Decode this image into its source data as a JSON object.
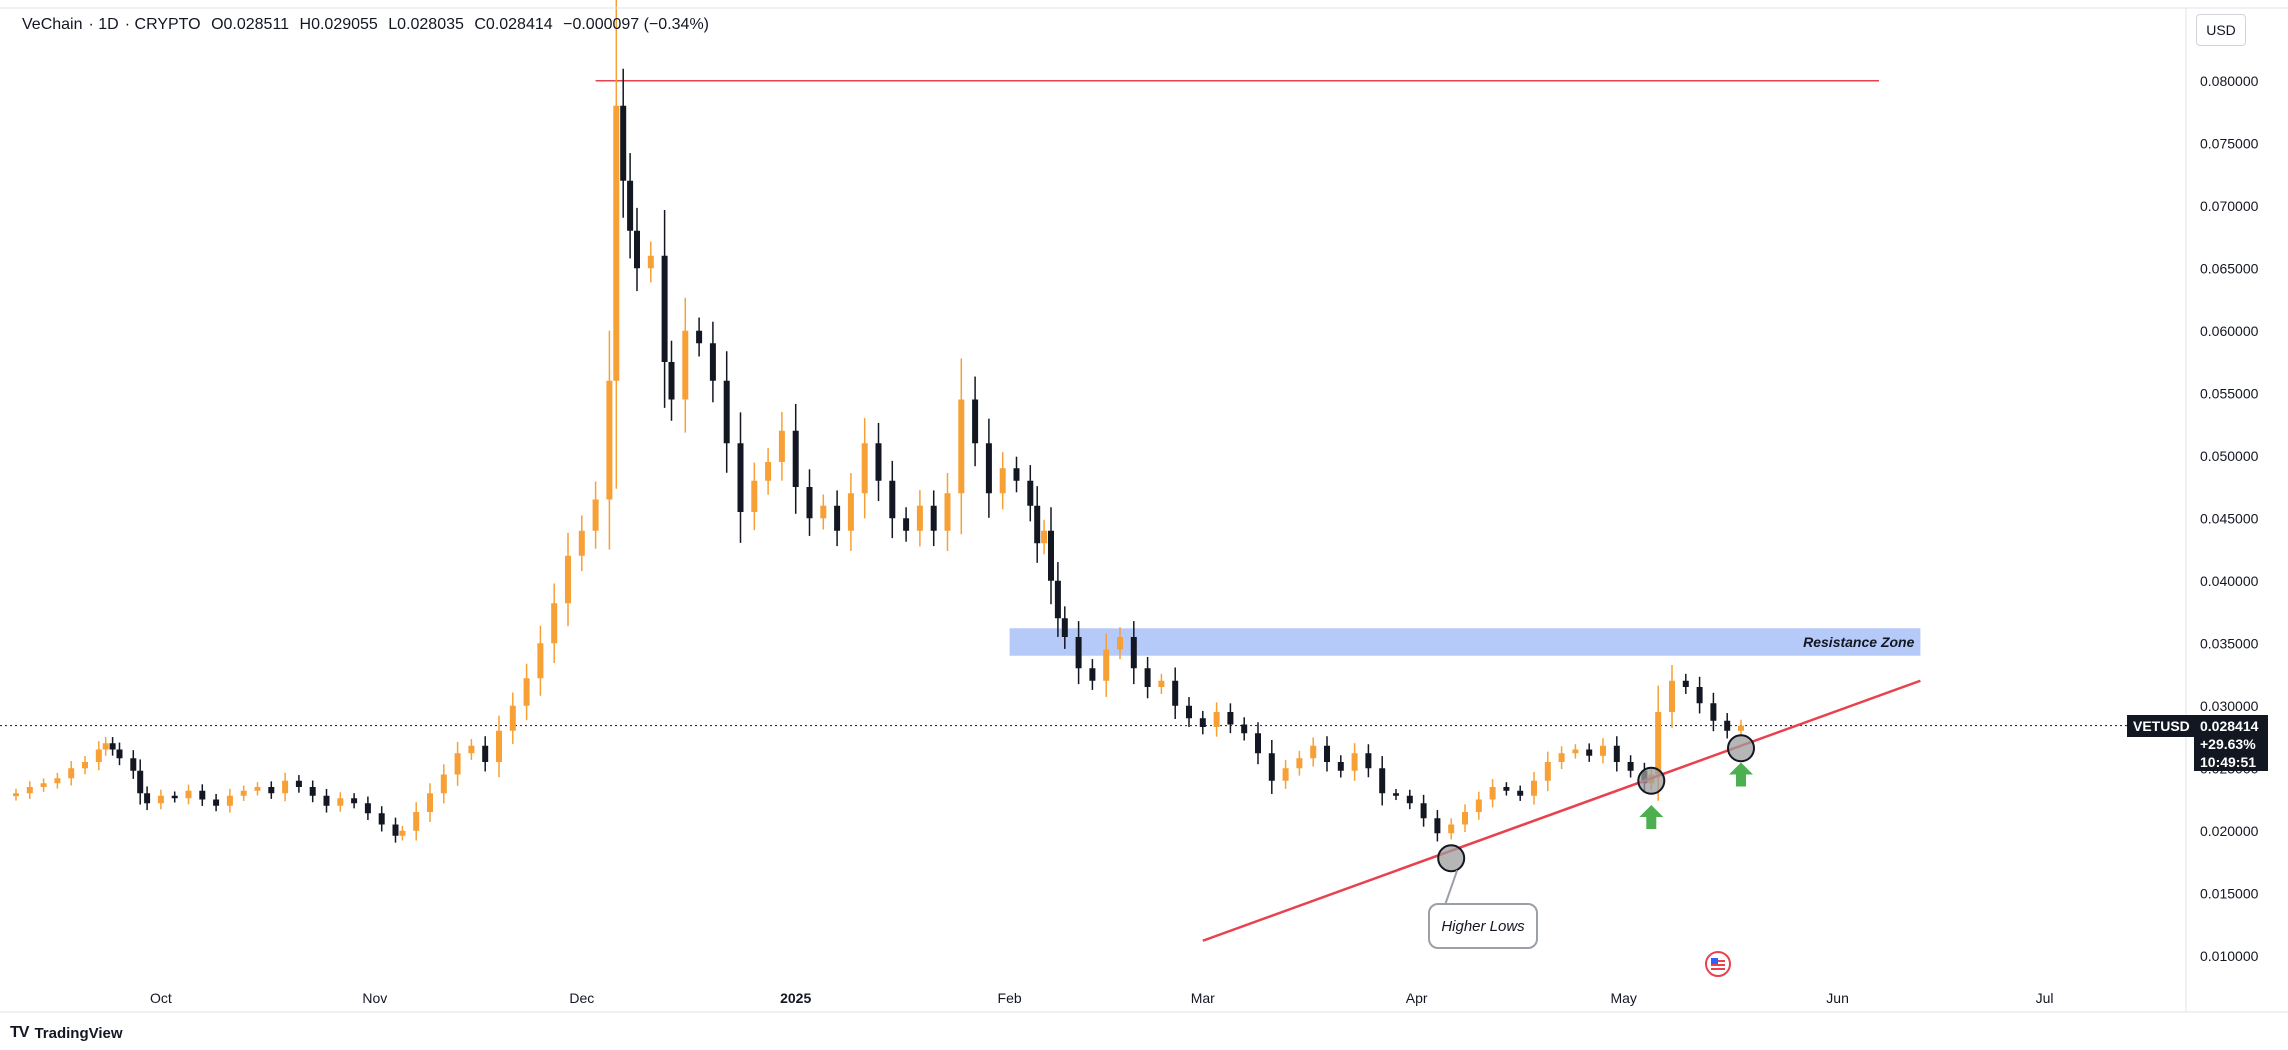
{
  "header": {
    "symbol_name": "VeChain",
    "interval": "1D",
    "source": "CRYPTO",
    "open": "O0.028511",
    "high": "H0.029055",
    "low": "L0.028035",
    "close": "C0.028414",
    "change": "−0.000097 (−0.34%)"
  },
  "currency_button": "USD",
  "brand": {
    "logo": "TV",
    "name": "TradingView"
  },
  "price_tag": {
    "symbol": "VETUSD",
    "price": "0.028414",
    "change": "+29.63%",
    "countdown": "10:49:51"
  },
  "annotations": {
    "resistance_label": "Resistance Zone",
    "higher_lows_label": "Higher Lows"
  },
  "colors": {
    "up": "#f7a035",
    "down": "#131722",
    "trendline": "#e8424f",
    "resistance_zone": "#a8c1f7",
    "arrow": "#4caf50"
  },
  "chart_data": {
    "type": "candlestick",
    "x_labels": [
      {
        "day": 21,
        "label": "Oct"
      },
      {
        "day": 52,
        "label": "Nov"
      },
      {
        "day": 82,
        "label": "Dec"
      },
      {
        "day": 113,
        "label": "2025"
      },
      {
        "day": 144,
        "label": "Feb"
      },
      {
        "day": 172,
        "label": "Mar"
      },
      {
        "day": 203,
        "label": "Apr"
      },
      {
        "day": 233,
        "label": "May"
      },
      {
        "day": 264,
        "label": "Jun"
      },
      {
        "day": 294,
        "label": "Jul"
      }
    ],
    "y_ticks": [
      "0.010000",
      "0.015000",
      "0.020000",
      "0.025000",
      "0.030000",
      "0.035000",
      "0.040000",
      "0.045000",
      "0.050000",
      "0.055000",
      "0.060000",
      "0.065000",
      "0.070000",
      "0.075000",
      "0.080000"
    ],
    "ylim": [
      0.0095,
      0.0815
    ],
    "current_price": 0.028414,
    "resistance_zone": {
      "from_day": 144,
      "to_day": 276,
      "low": 0.034,
      "high": 0.0362
    },
    "horizontal_line": {
      "from_day": 84,
      "to_day": 270,
      "price": 0.08
    },
    "trendline": {
      "from_day": 172,
      "from_price": 0.0112,
      "to_day": 276,
      "to_price": 0.032
    },
    "higher_low_markers": [
      {
        "day": 208,
        "price": 0.0178
      },
      {
        "day": 237,
        "price": 0.024
      },
      {
        "day": 250,
        "price": 0.0266
      }
    ],
    "up_arrows": [
      {
        "day": 237,
        "price": 0.0211
      },
      {
        "day": 250,
        "price": 0.0245
      }
    ],
    "closes": [
      [
        0,
        0.023
      ],
      [
        2,
        0.0235
      ],
      [
        4,
        0.0238
      ],
      [
        6,
        0.0242
      ],
      [
        8,
        0.025
      ],
      [
        10,
        0.0255
      ],
      [
        12,
        0.0265
      ],
      [
        13,
        0.027
      ],
      [
        14,
        0.0265
      ],
      [
        15,
        0.0258
      ],
      [
        17,
        0.0248
      ],
      [
        18,
        0.023
      ],
      [
        19,
        0.0222
      ],
      [
        21,
        0.0228
      ],
      [
        23,
        0.0226
      ],
      [
        25,
        0.0232
      ],
      [
        27,
        0.0225
      ],
      [
        29,
        0.022
      ],
      [
        31,
        0.0228
      ],
      [
        33,
        0.0232
      ],
      [
        35,
        0.0235
      ],
      [
        37,
        0.023
      ],
      [
        39,
        0.024
      ],
      [
        41,
        0.0235
      ],
      [
        43,
        0.0228
      ],
      [
        45,
        0.022
      ],
      [
        47,
        0.0226
      ],
      [
        49,
        0.0222
      ],
      [
        51,
        0.0214
      ],
      [
        53,
        0.0205
      ],
      [
        55,
        0.0196
      ],
      [
        56,
        0.02
      ],
      [
        58,
        0.0215
      ],
      [
        60,
        0.023
      ],
      [
        62,
        0.0245
      ],
      [
        64,
        0.0262
      ],
      [
        66,
        0.0268
      ],
      [
        68,
        0.0255
      ],
      [
        70,
        0.028
      ],
      [
        72,
        0.03
      ],
      [
        74,
        0.0322
      ],
      [
        76,
        0.035
      ],
      [
        78,
        0.0382
      ],
      [
        80,
        0.042
      ],
      [
        82,
        0.044
      ],
      [
        84,
        0.0465
      ],
      [
        86,
        0.056
      ],
      [
        87,
        0.078
      ],
      [
        88,
        0.072
      ],
      [
        89,
        0.068
      ],
      [
        90,
        0.065
      ],
      [
        92,
        0.066
      ],
      [
        94,
        0.0575
      ],
      [
        95,
        0.0545
      ],
      [
        97,
        0.06
      ],
      [
        99,
        0.059
      ],
      [
        101,
        0.056
      ],
      [
        103,
        0.051
      ],
      [
        105,
        0.0455
      ],
      [
        107,
        0.048
      ],
      [
        109,
        0.0495
      ],
      [
        111,
        0.052
      ],
      [
        113,
        0.0475
      ],
      [
        115,
        0.045
      ],
      [
        117,
        0.046
      ],
      [
        119,
        0.044
      ],
      [
        121,
        0.047
      ],
      [
        123,
        0.051
      ],
      [
        125,
        0.048
      ],
      [
        127,
        0.045
      ],
      [
        129,
        0.044
      ],
      [
        131,
        0.046
      ],
      [
        133,
        0.044
      ],
      [
        135,
        0.047
      ],
      [
        137,
        0.0545
      ],
      [
        139,
        0.051
      ],
      [
        141,
        0.047
      ],
      [
        143,
        0.049
      ],
      [
        145,
        0.048
      ],
      [
        147,
        0.046
      ],
      [
        148,
        0.043
      ],
      [
        149,
        0.044
      ],
      [
        150,
        0.04
      ],
      [
        151,
        0.037
      ],
      [
        152,
        0.0355
      ],
      [
        154,
        0.033
      ],
      [
        156,
        0.032
      ],
      [
        158,
        0.0345
      ],
      [
        160,
        0.0355
      ],
      [
        162,
        0.033
      ],
      [
        164,
        0.0315
      ],
      [
        166,
        0.032
      ],
      [
        168,
        0.03
      ],
      [
        170,
        0.029
      ],
      [
        172,
        0.0283
      ],
      [
        174,
        0.0295
      ],
      [
        176,
        0.0285
      ],
      [
        178,
        0.0278
      ],
      [
        180,
        0.0262
      ],
      [
        182,
        0.024
      ],
      [
        184,
        0.025
      ],
      [
        186,
        0.0258
      ],
      [
        188,
        0.0268
      ],
      [
        190,
        0.0255
      ],
      [
        192,
        0.0248
      ],
      [
        194,
        0.0262
      ],
      [
        196,
        0.025
      ],
      [
        198,
        0.023
      ],
      [
        200,
        0.0228
      ],
      [
        202,
        0.0222
      ],
      [
        204,
        0.021
      ],
      [
        206,
        0.0198
      ],
      [
        208,
        0.0205
      ],
      [
        210,
        0.0215
      ],
      [
        212,
        0.0225
      ],
      [
        214,
        0.0235
      ],
      [
        216,
        0.0232
      ],
      [
        218,
        0.0228
      ],
      [
        220,
        0.024
      ],
      [
        222,
        0.0255
      ],
      [
        224,
        0.0262
      ],
      [
        226,
        0.0265
      ],
      [
        228,
        0.026
      ],
      [
        230,
        0.0268
      ],
      [
        232,
        0.0255
      ],
      [
        234,
        0.0248
      ],
      [
        236,
        0.0238
      ],
      [
        237,
        0.0245
      ],
      [
        238,
        0.0295
      ],
      [
        240,
        0.032
      ],
      [
        242,
        0.0315
      ],
      [
        244,
        0.0302
      ],
      [
        246,
        0.0288
      ],
      [
        248,
        0.028
      ],
      [
        250,
        0.0284
      ]
    ]
  }
}
